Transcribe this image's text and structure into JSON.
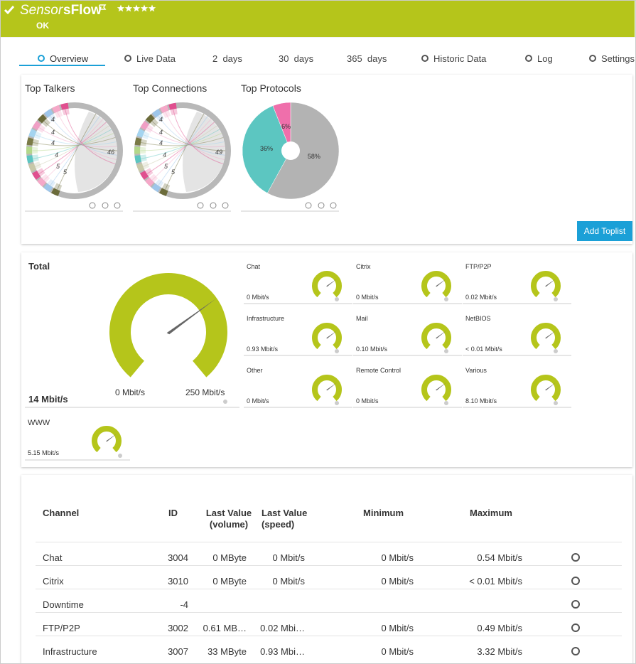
{
  "header": {
    "title_prefix": "Sensor",
    "title": "sFlow",
    "status": "OK"
  },
  "tabs": [
    "Overview",
    "Live Data",
    "2  days",
    "30  days",
    "365  days",
    "Historic Data",
    "Log",
    "Settings"
  ],
  "toplists": [
    {
      "title": "Top Talkers",
      "labels": [
        "46",
        "4",
        "4",
        "4",
        "4",
        "5",
        "5"
      ]
    },
    {
      "title": "Top Connections",
      "labels": [
        "49",
        "4",
        "4",
        "4",
        "4",
        "5",
        "5"
      ]
    },
    {
      "title": "Top Protocols",
      "type": "pie",
      "values": [
        58,
        36,
        6
      ],
      "value_labels": [
        "58%",
        "36%",
        "6%"
      ],
      "colors": [
        "#b3b3b3",
        "#5cc6c1",
        "#ef6fab"
      ]
    }
  ],
  "add_toplist": "Add Toplist",
  "total_gauge": {
    "name": "Total",
    "value": "14 Mbit/s",
    "min": "0 Mbit/s",
    "max": "250 Mbit/s"
  },
  "gauges": [
    {
      "name": "Chat",
      "value": "0 Mbit/s"
    },
    {
      "name": "Citrix",
      "value": "0 Mbit/s"
    },
    {
      "name": "FTP/P2P",
      "value": "0.02 Mbit/s"
    },
    {
      "name": "Infrastructure",
      "value": "0.93 Mbit/s"
    },
    {
      "name": "Mail",
      "value": "0.10 Mbit/s"
    },
    {
      "name": "NetBIOS",
      "value": "< 0.01 Mbit/s"
    },
    {
      "name": "Other",
      "value": "0 Mbit/s"
    },
    {
      "name": "Remote Control",
      "value": "0 Mbit/s"
    },
    {
      "name": "Various",
      "value": "8.10 Mbit/s"
    },
    {
      "name": "WWW",
      "value": "5.15 Mbit/s"
    }
  ],
  "table": {
    "headers": [
      "Channel",
      "ID",
      "Last Value (volume)",
      "Last Value (speed)",
      "Minimum",
      "Maximum"
    ],
    "rows": [
      [
        "Chat",
        "3004",
        "0 MByte",
        "0 Mbit/s",
        "0 Mbit/s",
        "0.54 Mbit/s"
      ],
      [
        "Citrix",
        "3010",
        "0 MByte",
        "0 Mbit/s",
        "0 Mbit/s",
        "< 0.01 Mbit/s"
      ],
      [
        "Downtime",
        "-4",
        "",
        "",
        "",
        ""
      ],
      [
        "FTP/P2P",
        "3002",
        "0.61 MB…",
        "0.02 Mbi…",
        "0 Mbit/s",
        "0.49 Mbit/s"
      ],
      [
        "Infrastructure",
        "3007",
        "33 MByte",
        "0.93 Mbi…",
        "0 Mbit/s",
        "3.32 Mbit/s"
      ]
    ]
  }
}
